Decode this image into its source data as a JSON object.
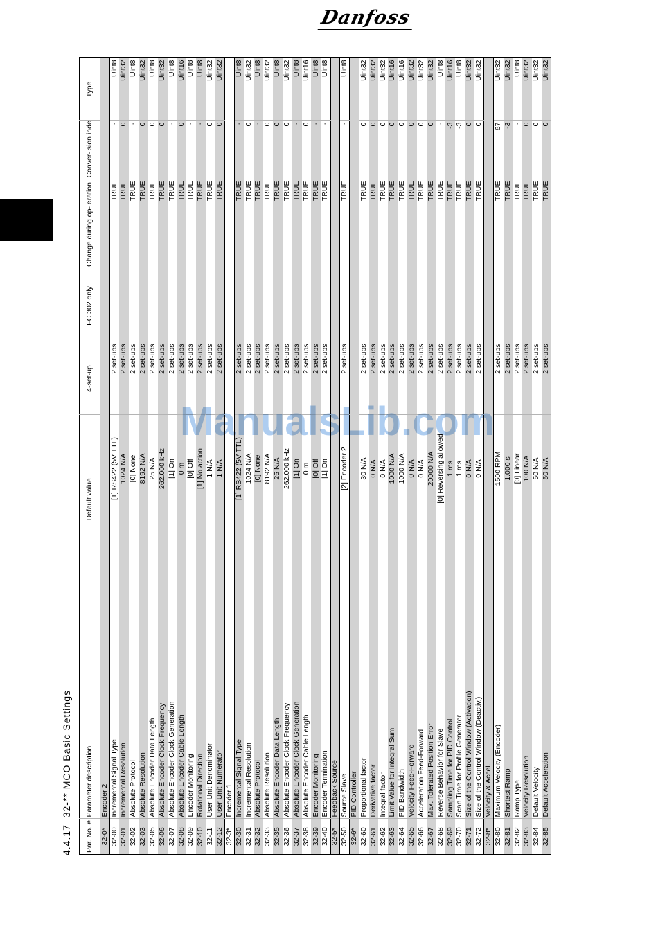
{
  "page": {
    "logo": "Danfoss",
    "watermark": "ManualsLib.com",
    "section_title": "4.4.17  32-** MCO Basic Settings"
  },
  "colors": {
    "row_shade": "#d2d2d2",
    "watermark_blue": "#aecdf0"
  },
  "table": {
    "headers": [
      "Par. No. #",
      "Parameter description",
      "Default value",
      "4-set-up",
      "FC 302\nonly",
      "Change during op-\neration",
      "Conver-\nsion index",
      "Type"
    ],
    "rows": [
      {
        "type": "section",
        "no": "32-0*",
        "description": "Encoder 2"
      },
      {
        "type": "param",
        "no": "32-00",
        "description": "Incremental Signal Type",
        "default": "[1] RS422 (5V TTL)",
        "four_setup": "2 set-ups",
        "fc302": "",
        "change": "TRUE",
        "conversion": "-",
        "data_type": "Uint8"
      },
      {
        "type": "param",
        "no": "32-01",
        "description": "Incremental Resolution",
        "default": "1024 N/A",
        "four_setup": "2 set-ups",
        "fc302": "",
        "change": "TRUE",
        "conversion": "0",
        "data_type": "Uint32"
      },
      {
        "type": "param",
        "no": "32-02",
        "description": "Absolute Protocol",
        "default": "[0] None",
        "four_setup": "2 set-ups",
        "fc302": "",
        "change": "TRUE",
        "conversion": "-",
        "data_type": "Uint8"
      },
      {
        "type": "param",
        "no": "32-03",
        "description": "Absolute Resolution",
        "default": "8192 N/A",
        "four_setup": "2 set-ups",
        "fc302": "",
        "change": "TRUE",
        "conversion": "0",
        "data_type": "Uint32"
      },
      {
        "type": "param",
        "no": "32-05",
        "description": "Absolute Encoder Data Length",
        "default": "25 N/A",
        "four_setup": "2 set-ups",
        "fc302": "",
        "change": "TRUE",
        "conversion": "0",
        "data_type": "Uint8"
      },
      {
        "type": "param",
        "no": "32-06",
        "description": "Absolute Encoder Clock Frequency",
        "default": "262.000 kHz",
        "four_setup": "2 set-ups",
        "fc302": "",
        "change": "TRUE",
        "conversion": "0",
        "data_type": "Uint32"
      },
      {
        "type": "param",
        "no": "32-07",
        "description": "Absolute Encoder Clock Generation",
        "default": "[1] On",
        "four_setup": "2 set-ups",
        "fc302": "",
        "change": "TRUE",
        "conversion": "-",
        "data_type": "Uint8"
      },
      {
        "type": "param",
        "no": "32-08",
        "description": "Absolute Encoder Cable Length",
        "default": "0 m",
        "four_setup": "2 set-ups",
        "fc302": "",
        "change": "TRUE",
        "conversion": "0",
        "data_type": "Uint16"
      },
      {
        "type": "param",
        "no": "32-09",
        "description": "Encoder Monitoring",
        "default": "[0] Off",
        "four_setup": "2 set-ups",
        "fc302": "",
        "change": "TRUE",
        "conversion": "-",
        "data_type": "Uint8"
      },
      {
        "type": "param",
        "no": "32-10",
        "description": "Rotational Direction",
        "default": "[1] No action",
        "four_setup": "2 set-ups",
        "fc302": "",
        "change": "TRUE",
        "conversion": "-",
        "data_type": "Uint8"
      },
      {
        "type": "param",
        "no": "32-11",
        "description": "User Unit Denominator",
        "default": "1 N/A",
        "four_setup": "2 set-ups",
        "fc302": "",
        "change": "TRUE",
        "conversion": "0",
        "data_type": "Uint32"
      },
      {
        "type": "param",
        "no": "32-12",
        "description": "User Unit Numerator",
        "default": "1 N/A",
        "four_setup": "2 set-ups",
        "fc302": "",
        "change": "TRUE",
        "conversion": "0",
        "data_type": "Uint32"
      },
      {
        "type": "section",
        "no": "32-3*",
        "description": "Encoder 1"
      },
      {
        "type": "param",
        "no": "32-30",
        "description": "Incremental Signal Type",
        "default": "[1] RS422 (5V TTL)",
        "four_setup": "2 set-ups",
        "fc302": "",
        "change": "TRUE",
        "conversion": "-",
        "data_type": "Uint8"
      },
      {
        "type": "param",
        "no": "32-31",
        "description": "Incremental Resolution",
        "default": "1024 N/A",
        "four_setup": "2 set-ups",
        "fc302": "",
        "change": "TRUE",
        "conversion": "0",
        "data_type": "Uint32"
      },
      {
        "type": "param",
        "no": "32-32",
        "description": "Absolute Protocol",
        "default": "[0] None",
        "four_setup": "2 set-ups",
        "fc302": "",
        "change": "TRUE",
        "conversion": "-",
        "data_type": "Uint8"
      },
      {
        "type": "param",
        "no": "32-33",
        "description": "Absolute Resolution",
        "default": "8192 N/A",
        "four_setup": "2 set-ups",
        "fc302": "",
        "change": "TRUE",
        "conversion": "0",
        "data_type": "Uint32"
      },
      {
        "type": "param",
        "no": "32-35",
        "description": "Absolute Encoder Data Length",
        "default": "25 N/A",
        "four_setup": "2 set-ups",
        "fc302": "",
        "change": "TRUE",
        "conversion": "0",
        "data_type": "Uint8"
      },
      {
        "type": "param",
        "no": "32-36",
        "description": "Absolute Encoder Clock Frequency",
        "default": "262.000 kHz",
        "four_setup": "2 set-ups",
        "fc302": "",
        "change": "TRUE",
        "conversion": "0",
        "data_type": "Uint32"
      },
      {
        "type": "param",
        "no": "32-37",
        "description": "Absolute Encoder Clock Generation",
        "default": "[1] On",
        "four_setup": "2 set-ups",
        "fc302": "",
        "change": "TRUE",
        "conversion": "-",
        "data_type": "Uint8"
      },
      {
        "type": "param",
        "no": "32-38",
        "description": "Absolute Encoder Cable Length",
        "default": "0 m",
        "four_setup": "2 set-ups",
        "fc302": "",
        "change": "TRUE",
        "conversion": "0",
        "data_type": "Uint16"
      },
      {
        "type": "param",
        "no": "32-39",
        "description": "Encoder Monitoring",
        "default": "[0] Off",
        "four_setup": "2 set-ups",
        "fc302": "",
        "change": "TRUE",
        "conversion": "-",
        "data_type": "Uint8"
      },
      {
        "type": "param",
        "no": "32-40",
        "description": "Encoder Termination",
        "default": "[1] On",
        "four_setup": "2 set-ups",
        "fc302": "",
        "change": "TRUE",
        "conversion": "-",
        "data_type": "Uint8"
      },
      {
        "type": "section",
        "no": "32-5*",
        "description": "Feedback Source"
      },
      {
        "type": "param",
        "no": "32-50",
        "description": "Source Slave",
        "default": "[2] Encoder 2",
        "four_setup": "2 set-ups",
        "fc302": "",
        "change": "TRUE",
        "conversion": "-",
        "data_type": "Uint8"
      },
      {
        "type": "section",
        "no": "32-6*",
        "description": "PID Controller"
      },
      {
        "type": "param",
        "no": "32-60",
        "description": "Proportional factor",
        "default": "30 N/A",
        "four_setup": "2 set-ups",
        "fc302": "",
        "change": "TRUE",
        "conversion": "0",
        "data_type": "Uint32"
      },
      {
        "type": "param",
        "no": "32-61",
        "description": "Derivative factor",
        "default": "0 N/A",
        "four_setup": "2 set-ups",
        "fc302": "",
        "change": "TRUE",
        "conversion": "0",
        "data_type": "Uint32"
      },
      {
        "type": "param",
        "no": "32-62",
        "description": "Integral factor",
        "default": "0 N/A",
        "four_setup": "2 set-ups",
        "fc302": "",
        "change": "TRUE",
        "conversion": "0",
        "data_type": "Uint32"
      },
      {
        "type": "param",
        "no": "32-63",
        "description": "Limit Value for Integral Sum",
        "default": "1000 N/A",
        "four_setup": "2 set-ups",
        "fc302": "",
        "change": "TRUE",
        "conversion": "0",
        "data_type": "Uint16"
      },
      {
        "type": "param",
        "no": "32-64",
        "description": "PID Bandwidth",
        "default": "1000 N/A",
        "four_setup": "2 set-ups",
        "fc302": "",
        "change": "TRUE",
        "conversion": "0",
        "data_type": "Uint16"
      },
      {
        "type": "param",
        "no": "32-65",
        "description": "Velocity Feed-Forward",
        "default": "0 N/A",
        "four_setup": "2 set-ups",
        "fc302": "",
        "change": "TRUE",
        "conversion": "0",
        "data_type": "Uint32"
      },
      {
        "type": "param",
        "no": "32-66",
        "description": "Acceleration Feed-Forward",
        "default": "0 N/A",
        "four_setup": "2 set-ups",
        "fc302": "",
        "change": "TRUE",
        "conversion": "0",
        "data_type": "Uint32"
      },
      {
        "type": "param",
        "no": "32-67",
        "description": "Max. Tolerated Position Error",
        "default": "20000 N/A",
        "four_setup": "2 set-ups",
        "fc302": "",
        "change": "TRUE",
        "conversion": "0",
        "data_type": "Uint32"
      },
      {
        "type": "param",
        "no": "32-68",
        "description": "Reverse Behavior for Slave",
        "default": "[0] Reversing allowed",
        "four_setup": "2 set-ups",
        "fc302": "",
        "change": "TRUE",
        "conversion": "-",
        "data_type": "Uint8"
      },
      {
        "type": "param",
        "no": "32-69",
        "description": "Sampling Time for PID Control",
        "default": "1 ms",
        "four_setup": "2 set-ups",
        "fc302": "",
        "change": "TRUE",
        "conversion": "-3",
        "data_type": "Uint16"
      },
      {
        "type": "param",
        "no": "32-70",
        "description": "Scan Time for Profile Generator",
        "default": "1 ms",
        "four_setup": "2 set-ups",
        "fc302": "",
        "change": "TRUE",
        "conversion": "-3",
        "data_type": "Uint8"
      },
      {
        "type": "param",
        "no": "32-71",
        "description": "Size of the Control Window (Activation)",
        "default": "0 N/A",
        "four_setup": "2 set-ups",
        "fc302": "",
        "change": "TRUE",
        "conversion": "0",
        "data_type": "Uint32"
      },
      {
        "type": "param",
        "no": "32-72",
        "description": "Size of the Control Window (Deactiv.)",
        "default": "0 N/A",
        "four_setup": "2 set-ups",
        "fc302": "",
        "change": "TRUE",
        "conversion": "0",
        "data_type": "Uint32"
      },
      {
        "type": "section",
        "no": "32-8*",
        "description": "Velocity & Accel."
      },
      {
        "type": "param",
        "no": "32-80",
        "description": "Maximum Velocity (Encoder)",
        "default": "1500 RPM",
        "four_setup": "2 set-ups",
        "fc302": "",
        "change": "TRUE",
        "conversion": "67",
        "data_type": "Uint32"
      },
      {
        "type": "param",
        "no": "32-81",
        "description": "Shortest Ramp",
        "default": "1.000 s",
        "four_setup": "2 set-ups",
        "fc302": "",
        "change": "TRUE",
        "conversion": "-3",
        "data_type": "Uint32"
      },
      {
        "type": "param",
        "no": "32-82",
        "description": "Ramp Type",
        "default": "[0] Linear",
        "four_setup": "2 set-ups",
        "fc302": "",
        "change": "TRUE",
        "conversion": "-",
        "data_type": "Uint8"
      },
      {
        "type": "param",
        "no": "32-83",
        "description": "Velocity Resolution",
        "default": "100 N/A",
        "four_setup": "2 set-ups",
        "fc302": "",
        "change": "TRUE",
        "conversion": "0",
        "data_type": "Uint32"
      },
      {
        "type": "param",
        "no": "32-84",
        "description": "Default Velocity",
        "default": "50 N/A",
        "four_setup": "2 set-ups",
        "fc302": "",
        "change": "TRUE",
        "conversion": "0",
        "data_type": "Uint32"
      },
      {
        "type": "param",
        "no": "32-85",
        "description": "Default Acceleration",
        "default": "50 N/A",
        "four_setup": "2 set-ups",
        "fc302": "",
        "change": "TRUE",
        "conversion": "0",
        "data_type": "Uint32"
      }
    ]
  }
}
